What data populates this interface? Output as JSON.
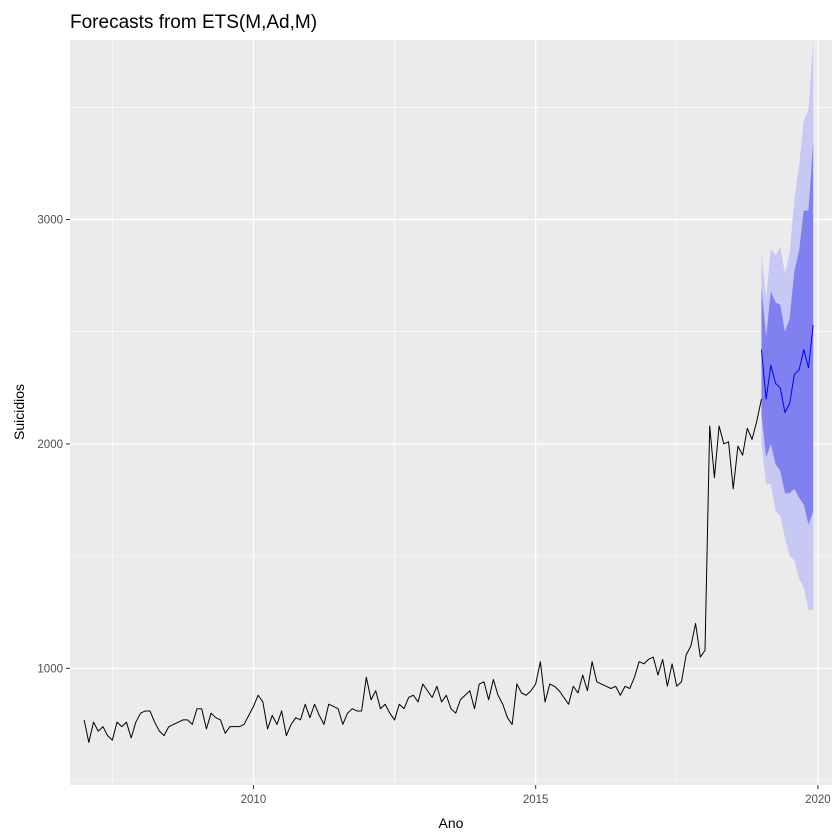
{
  "chart_data": {
    "type": "line",
    "title": "Forecasts from ETS(M,Ad,M)",
    "xlabel": "Ano",
    "ylabel": "Suicidios",
    "xlim": [
      2006.75,
      2020.25
    ],
    "ylim": [
      480,
      3800
    ],
    "x_ticks": [
      2010,
      2015,
      2020
    ],
    "y_ticks": [
      1000,
      2000,
      3000
    ],
    "grid": true,
    "colors": {
      "panel": "#ebebeb",
      "grid": "#ffffff",
      "history": "#000000",
      "forecast": "#0000ff",
      "pi80": "#8080f0",
      "pi95": "#c8c8f4"
    },
    "history": {
      "start": [
        2007,
        1
      ],
      "frequency": 12,
      "values": [
        770,
        670,
        760,
        720,
        740,
        700,
        680,
        760,
        740,
        760,
        690,
        760,
        800,
        810,
        810,
        760,
        720,
        700,
        740,
        750,
        760,
        770,
        770,
        750,
        820,
        820,
        730,
        800,
        780,
        770,
        710,
        740,
        740,
        740,
        750,
        790,
        830,
        880,
        850,
        730,
        790,
        750,
        810,
        700,
        750,
        780,
        770,
        840,
        780,
        840,
        790,
        750,
        840,
        830,
        820,
        750,
        800,
        820,
        810,
        810,
        960,
        860,
        900,
        820,
        840,
        800,
        770,
        840,
        820,
        870,
        880,
        850,
        930,
        900,
        870,
        920,
        850,
        880,
        820,
        800,
        860,
        880,
        900,
        820,
        930,
        940,
        860,
        950,
        880,
        840,
        780,
        750,
        930,
        890,
        880,
        900,
        930,
        1030,
        850,
        930,
        920,
        900,
        870,
        840,
        920,
        890,
        970,
        900,
        1030,
        940,
        930,
        920,
        910,
        920,
        880,
        920,
        910,
        960,
        1030,
        1020,
        1040,
        1050,
        970,
        1040,
        920,
        1020,
        920,
        940,
        1060,
        1100,
        1200,
        1050,
        1080,
        2080,
        1850,
        2080,
        2000,
        2010,
        1800,
        1990,
        1950,
        2070,
        2020,
        2100,
        2200
      ]
    },
    "forecast": {
      "start": [
        2019,
        1
      ],
      "frequency": 12,
      "mean": [
        2420,
        2200,
        2350,
        2270,
        2250,
        2140,
        2180,
        2310,
        2330,
        2420,
        2340,
        2530
      ],
      "lo80": [
        2130,
        1940,
        2000,
        1910,
        1880,
        1780,
        1780,
        1800,
        1760,
        1730,
        1640,
        1700
      ],
      "hi80": [
        2700,
        2480,
        2680,
        2630,
        2620,
        2500,
        2560,
        2770,
        2860,
        3040,
        3040,
        3350
      ],
      "lo95": [
        2000,
        1820,
        1820,
        1700,
        1680,
        1580,
        1500,
        1480,
        1400,
        1360,
        1260,
        1260
      ],
      "hi95": [
        2850,
        2650,
        2870,
        2840,
        2880,
        2760,
        2850,
        3090,
        3240,
        3440,
        3490,
        3800
      ]
    }
  }
}
